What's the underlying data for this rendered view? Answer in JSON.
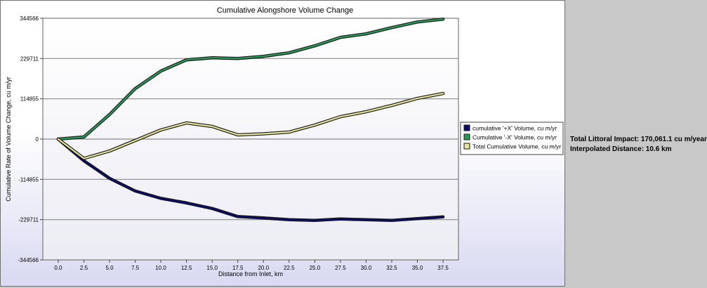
{
  "chart_data": {
    "type": "line",
    "title": "Cumulative Alongshore Volume Change",
    "xlabel": "Distance from Inlet, km",
    "ylabel": "Cumulative Rate of Volume Change, cu m/yr",
    "xlim": [
      -1.5,
      39
    ],
    "ylim": [
      -344566,
      344566
    ],
    "x_ticks": [
      "0.0",
      "2.5",
      "5.0",
      "7.5",
      "10.0",
      "12.5",
      "15.0",
      "17.5",
      "20.0",
      "22.5",
      "25.0",
      "27.5",
      "30.0",
      "32.5",
      "35.0",
      "37.5"
    ],
    "y_ticks": [
      "344566",
      "229711",
      "114855",
      "0",
      "-114855",
      "-229711",
      "-344566"
    ],
    "grid": "horizontal",
    "legend_position": "right",
    "x": [
      0,
      2.5,
      5,
      7.5,
      10,
      12.5,
      15,
      17.5,
      20,
      22.5,
      25,
      27.5,
      30,
      32.5,
      35,
      37.5
    ],
    "series": [
      {
        "name": "cumulative '+X' Volume, cu m/yr",
        "color": "#0a0a6a",
        "values": [
          0,
          -62000,
          -112000,
          -148000,
          -169000,
          -182000,
          -198000,
          -221000,
          -225000,
          -230000,
          -232000,
          -228000,
          -230000,
          -232000,
          -227000,
          -222000
        ]
      },
      {
        "name": "Cumulative '-X' Volume, cu m/yr",
        "color": "#2a9a5a",
        "values": [
          0,
          6000,
          70000,
          144000,
          194000,
          226000,
          232000,
          230000,
          236000,
          246000,
          266000,
          290000,
          300000,
          318000,
          334000,
          342000
        ]
      },
      {
        "name": "Total Cumulative Volume, cu m/yr",
        "color": "#e6e39a",
        "values": [
          0,
          -55000,
          -34000,
          -4000,
          26000,
          46000,
          36000,
          12000,
          15000,
          20000,
          40000,
          64000,
          78000,
          96000,
          116000,
          130000
        ]
      }
    ]
  },
  "summary": {
    "impact": "Total Littoral Impact: 170,061.1 cu m/year",
    "distance": "Interpolated Distance: 10.6 km"
  }
}
